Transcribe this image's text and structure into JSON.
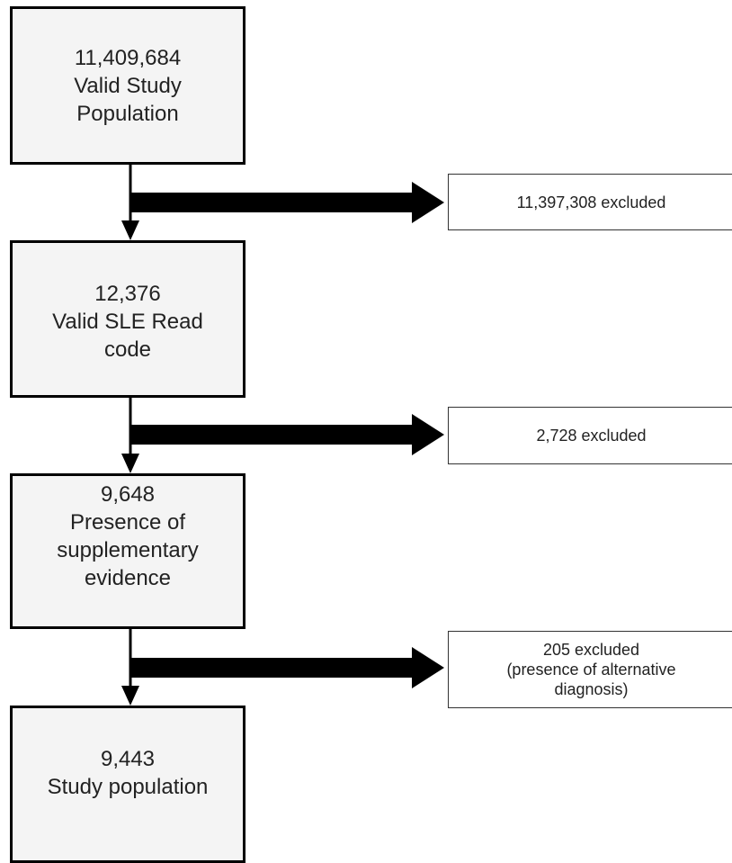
{
  "flowchart": {
    "steps": [
      {
        "count": "11,409,684",
        "line1": "Valid Study",
        "line2": "Population"
      },
      {
        "count": "12,376",
        "line1": "Valid SLE Read",
        "line2": "code"
      },
      {
        "count": "9,648",
        "line1": "Presence of",
        "line2": "supplementary",
        "line3": "evidence"
      },
      {
        "count": "9,443",
        "line1": "Study population"
      }
    ],
    "exclusions": [
      {
        "line1": "11,397,308 excluded"
      },
      {
        "line1": "2,728 excluded"
      },
      {
        "line1": "205 excluded",
        "line2": "(presence of alternative",
        "line3": "diagnosis)"
      }
    ]
  },
  "colors": {
    "box_fill": "#f4f4f4",
    "box_border": "#000000",
    "arrow": "#000000",
    "text": "#222222"
  }
}
